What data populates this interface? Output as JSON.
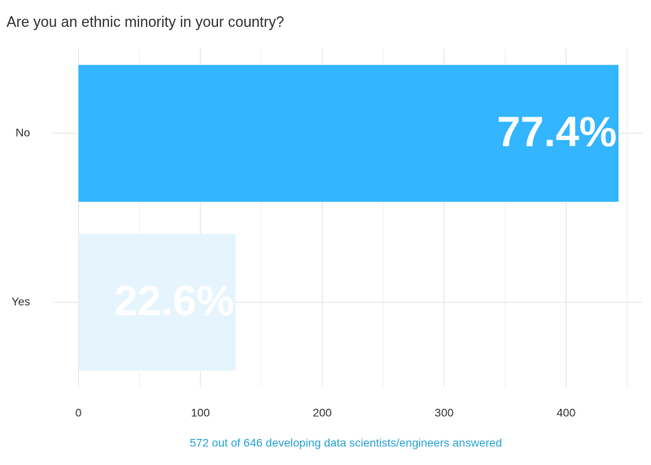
{
  "chart_data": {
    "type": "hbar",
    "title": "Are you an ethnic minority in your country?",
    "categories": [
      "No",
      "Yes"
    ],
    "values": [
      443,
      129
    ],
    "value_labels": [
      "77.4%",
      "22.6%"
    ],
    "colors": [
      "#33b5ff",
      "#e6f5fd"
    ],
    "xlim": [
      -21,
      463
    ],
    "xticks": [
      0,
      100,
      200,
      300,
      400
    ],
    "minor_xticks": [
      50,
      150,
      250,
      350,
      450
    ],
    "grid": true,
    "caption": "572 out of 646 developing data scientists/engineers answered"
  }
}
